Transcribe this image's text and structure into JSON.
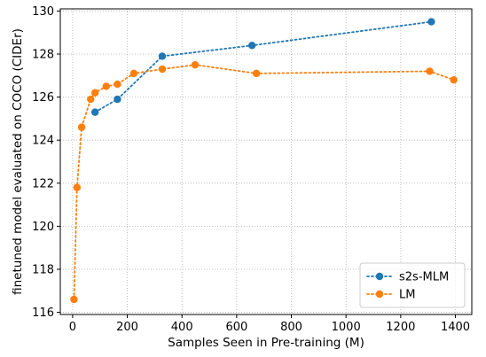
{
  "chart_data": {
    "type": "line",
    "title": "",
    "xlabel": "Samples Seen in Pre-training (M)",
    "ylabel": "finetuned model evaluated on COCO (CIDEr)",
    "xlim": [
      -45,
      1460
    ],
    "ylim": [
      115.9,
      130.1
    ],
    "xticks": [
      0,
      200,
      400,
      600,
      800,
      1000,
      1200,
      1400
    ],
    "yticks": [
      116,
      118,
      120,
      122,
      124,
      126,
      128,
      130
    ],
    "grid": true,
    "grid_style": "dotted",
    "line_style": "dotted",
    "legend_position": "lower-right",
    "series": [
      {
        "name": "s2s-MLM",
        "color": "#1f77b4",
        "x": [
          82,
          164,
          328,
          656,
          1312
        ],
        "y": [
          125.3,
          125.9,
          127.9,
          128.4,
          129.5
        ]
      },
      {
        "name": "LM",
        "color": "#ff7f0e",
        "x": [
          5,
          16,
          33,
          66,
          82,
          123,
          164,
          224,
          328,
          448,
          672,
          1306,
          1394
        ],
        "y": [
          116.6,
          121.8,
          124.6,
          125.9,
          126.2,
          126.5,
          126.6,
          127.1,
          127.3,
          127.5,
          127.1,
          127.2,
          126.8
        ]
      }
    ]
  }
}
